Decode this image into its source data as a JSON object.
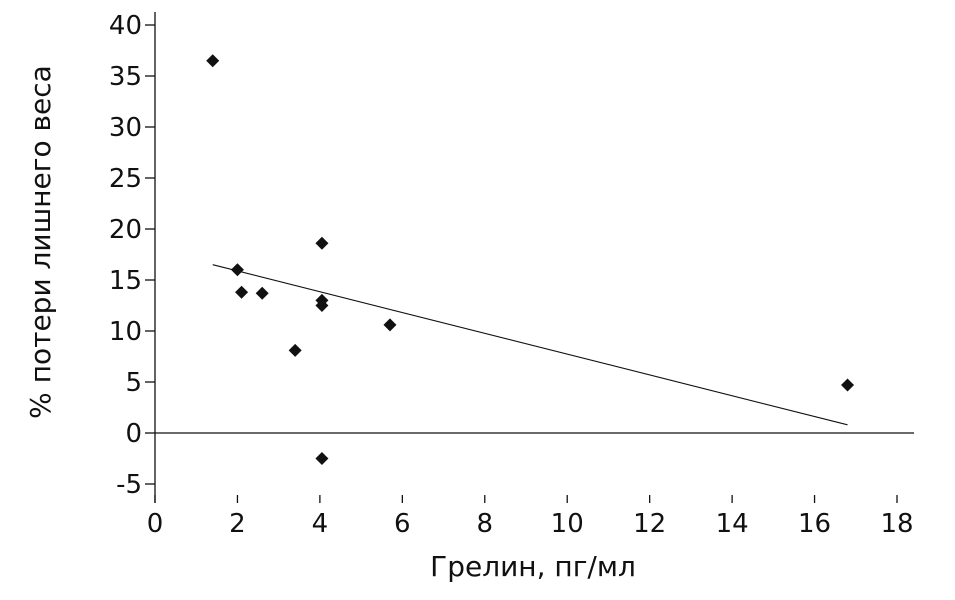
{
  "chart_data": {
    "type": "scatter",
    "title": "",
    "xlabel": "Грелин, пг/мл",
    "ylabel": "% потери лишнего веса",
    "xlim": [
      0,
      18
    ],
    "ylim": [
      -5,
      40
    ],
    "xticks": [
      0,
      2,
      4,
      6,
      8,
      10,
      12,
      14,
      16,
      18
    ],
    "yticks": [
      40,
      35,
      30,
      25,
      20,
      15,
      10,
      5,
      0,
      -5
    ],
    "grid": false,
    "legend": "none",
    "marker": "diamond",
    "marker_color": "#111111",
    "points": [
      {
        "x": 1.4,
        "y": 36.5
      },
      {
        "x": 2.0,
        "y": 16.0
      },
      {
        "x": 2.1,
        "y": 13.8
      },
      {
        "x": 2.6,
        "y": 13.7
      },
      {
        "x": 3.4,
        "y": 8.1
      },
      {
        "x": 4.05,
        "y": 18.6
      },
      {
        "x": 4.05,
        "y": 13.0
      },
      {
        "x": 4.05,
        "y": 12.5
      },
      {
        "x": 4.05,
        "y": -2.5
      },
      {
        "x": 5.7,
        "y": 10.6
      },
      {
        "x": 16.8,
        "y": 4.7
      }
    ],
    "trendline": {
      "x": [
        1.4,
        16.8
      ],
      "y": [
        16.5,
        0.8
      ]
    }
  }
}
